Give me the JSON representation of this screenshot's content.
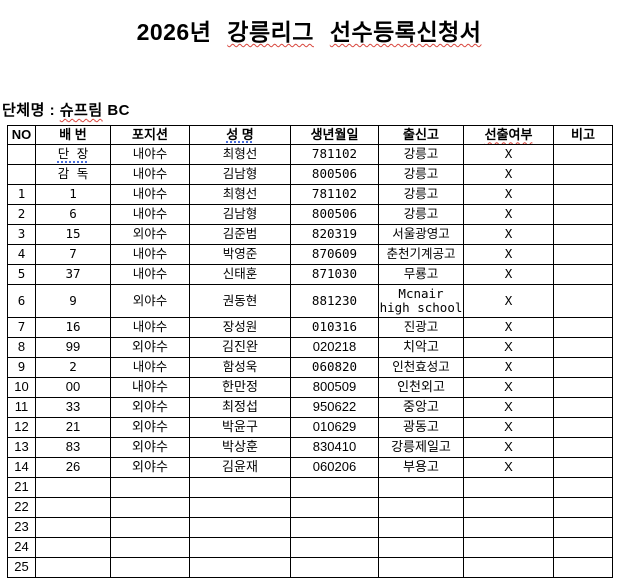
{
  "colors": {
    "spellcheck_red": "#d8453c",
    "spellcheck_blue": "#4a6fdc",
    "text": "#000000",
    "background": "#ffffff"
  },
  "title": {
    "part1": "2026년",
    "part2": "강릉리그",
    "part3": "선수등록신청서"
  },
  "org": {
    "label": "단체명 :",
    "name": "슈프림",
    "suffix": "BC"
  },
  "table": {
    "headers": [
      {
        "key": "no",
        "label": "NO",
        "mark": ""
      },
      {
        "key": "number",
        "label": "배 번",
        "mark": ""
      },
      {
        "key": "position",
        "label": "포지션",
        "mark": ""
      },
      {
        "key": "name",
        "label": "성  명",
        "mark": "blue"
      },
      {
        "key": "birth",
        "label": "생년월일",
        "mark": ""
      },
      {
        "key": "school",
        "label": "출신고",
        "mark": ""
      },
      {
        "key": "selected",
        "label": "선출여부",
        "mark": "red"
      },
      {
        "key": "note",
        "label": "비고",
        "mark": ""
      }
    ],
    "rows": [
      {
        "no": "",
        "number": "단 장",
        "number_mark": "blue",
        "position": "내야수",
        "name": "최형선",
        "birth": "781102",
        "school": "강릉고",
        "selected": "X",
        "note": "",
        "variant": "a"
      },
      {
        "no": "",
        "number": "감 독",
        "number_mark": "",
        "position": "내야수",
        "name": "김남형",
        "birth": "800506",
        "school": "강릉고",
        "selected": "X",
        "note": "",
        "variant": "a"
      },
      {
        "no": "1",
        "number": "1",
        "number_mark": "",
        "position": "내야수",
        "name": "최형선",
        "birth": "781102",
        "school": "강릉고",
        "selected": "X",
        "note": "",
        "variant": "a"
      },
      {
        "no": "2",
        "number": "6",
        "number_mark": "",
        "position": "내야수",
        "name": "김남형",
        "birth": "800506",
        "school": "강릉고",
        "selected": "X",
        "note": "",
        "variant": "a"
      },
      {
        "no": "3",
        "number": "15",
        "number_mark": "",
        "position": "외야수",
        "name": "김준범",
        "birth": "820319",
        "school": "서울광영고",
        "selected": "X",
        "note": "",
        "variant": "a"
      },
      {
        "no": "4",
        "number": "7",
        "number_mark": "",
        "position": "내야수",
        "name": "박영준",
        "birth": "870609",
        "school": "춘천기계공고",
        "selected": "X",
        "note": "",
        "variant": "a"
      },
      {
        "no": "5",
        "number": "37",
        "number_mark": "",
        "position": "내야수",
        "name": "신태훈",
        "birth": "871030",
        "school": "무룡고",
        "selected": "X",
        "note": "",
        "variant": "a"
      },
      {
        "no": "6",
        "number": "9",
        "number_mark": "",
        "position": "외야수",
        "name": "권동현",
        "birth": "881230",
        "school": "Mcnair\nhigh school",
        "selected": "X",
        "note": "",
        "variant": "a"
      },
      {
        "no": "7",
        "number": "16",
        "number_mark": "",
        "position": "내야수",
        "name": "장성원",
        "birth": "010316",
        "school": "진광고",
        "selected": "X",
        "note": "",
        "variant": "a"
      },
      {
        "no": "8",
        "number": "99",
        "number_mark": "",
        "position": "외야수",
        "name": "김진완",
        "birth": "020218",
        "school": "치악고",
        "selected": "X",
        "note": "",
        "variant": "b"
      },
      {
        "no": "9",
        "number": "2",
        "number_mark": "",
        "position": "내야수",
        "name": "함성욱",
        "birth": "060820",
        "school": "인천효성고",
        "selected": "X",
        "note": "",
        "variant": "a"
      },
      {
        "no": "10",
        "number": "00",
        "number_mark": "",
        "position": "내야수",
        "name": "한만정",
        "birth": "800509",
        "school": "인천외고",
        "selected": "X",
        "note": "",
        "variant": "b"
      },
      {
        "no": "11",
        "number": "33",
        "number_mark": "",
        "position": "외야수",
        "name": "최정섭",
        "birth": "950622",
        "school": "중앙고",
        "selected": "X",
        "note": "",
        "variant": "b"
      },
      {
        "no": "12",
        "number": "21",
        "number_mark": "",
        "position": "외야수",
        "name": "박윤구",
        "birth": "010629",
        "school": "광동고",
        "selected": "X",
        "note": "",
        "variant": "b"
      },
      {
        "no": "13",
        "number": "83",
        "number_mark": "",
        "position": "외야수",
        "name": "박상훈",
        "birth": "830410",
        "school": "강릉제일고",
        "selected": "X",
        "note": "",
        "variant": "b"
      },
      {
        "no": "14",
        "number": "26",
        "number_mark": "",
        "position": "외야수",
        "name": "김윤재",
        "birth": "060206",
        "school": "부용고",
        "selected": "X",
        "note": "",
        "variant": "b"
      },
      {
        "no": "21",
        "number": "",
        "number_mark": "",
        "position": "",
        "name": "",
        "birth": "",
        "school": "",
        "selected": "",
        "note": "",
        "variant": "b"
      },
      {
        "no": "22",
        "number": "",
        "number_mark": "",
        "position": "",
        "name": "",
        "birth": "",
        "school": "",
        "selected": "",
        "note": "",
        "variant": "b"
      },
      {
        "no": "23",
        "number": "",
        "number_mark": "",
        "position": "",
        "name": "",
        "birth": "",
        "school": "",
        "selected": "",
        "note": "",
        "variant": "b"
      },
      {
        "no": "24",
        "number": "",
        "number_mark": "",
        "position": "",
        "name": "",
        "birth": "",
        "school": "",
        "selected": "",
        "note": "",
        "variant": "b"
      },
      {
        "no": "25",
        "number": "",
        "number_mark": "",
        "position": "",
        "name": "",
        "birth": "",
        "school": "",
        "selected": "",
        "note": "",
        "variant": "b"
      }
    ]
  }
}
